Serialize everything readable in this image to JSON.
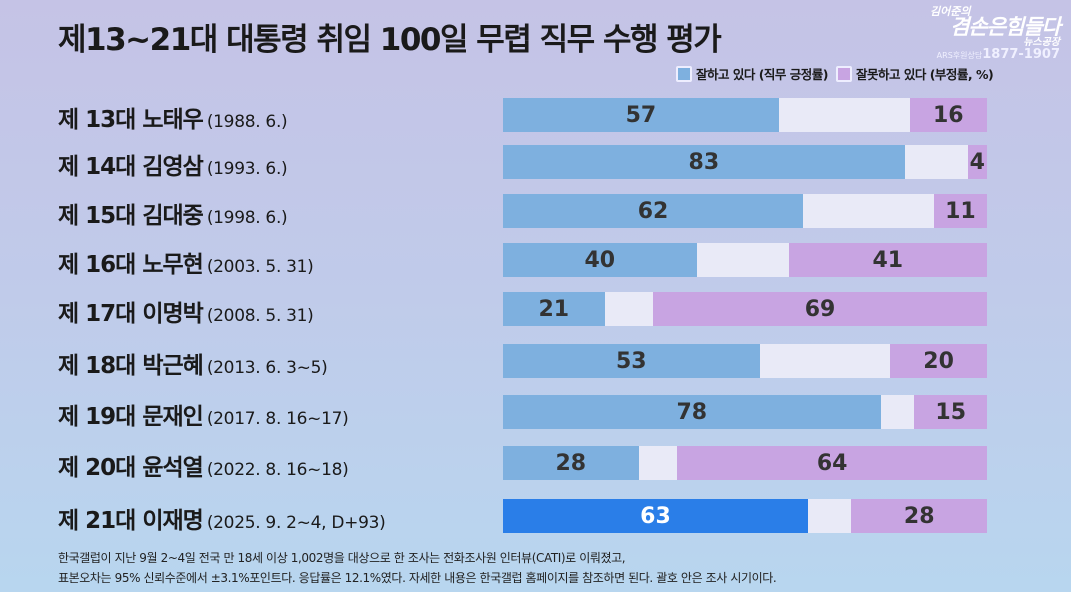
{
  "title": "제13~21대 대통령 취임 100일 무렵 직무 수행 평가",
  "logo": {
    "line1": "김어준의",
    "line2": "겸손은힘들다",
    "line3": "뉴스공장",
    "ars_label": "ARS후원상담",
    "phone": "1877-1907"
  },
  "colors": {
    "positive": "#7eb0df",
    "negative": "#c8a4e2",
    "highlight": "#2a7ee8",
    "gap": "#e9eaf7"
  },
  "chart_data": {
    "type": "bar",
    "orientation": "horizontal-stacked-diverging",
    "legend": [
      "잘하고 있다 (직무 긍정률)",
      "잘못하고 있다 (부정률, %)"
    ],
    "legend_position": "top-right",
    "categories": [
      {
        "name": "제 13대 노태우",
        "period": "(1988. 6.)"
      },
      {
        "name": "제 14대 김영삼",
        "period": "(1993. 6.)"
      },
      {
        "name": "제 15대 김대중",
        "period": "(1998. 6.)"
      },
      {
        "name": "제 16대 노무현",
        "period": "(2003. 5. 31)"
      },
      {
        "name": "제 17대 이명박",
        "period": "(2008. 5. 31)"
      },
      {
        "name": "제 18대 박근혜",
        "period": "(2013. 6. 3~5)"
      },
      {
        "name": "제 19대 문재인",
        "period": "(2017. 8. 16~17)"
      },
      {
        "name": "제 20대 윤석열",
        "period": "(2022. 8. 16~18)"
      },
      {
        "name": "제 21대 이재명",
        "period": "(2025. 9. 2~4, D+93)"
      }
    ],
    "series": [
      {
        "name": "잘하고 있다 (직무 긍정률)",
        "values": [
          57,
          83,
          62,
          40,
          21,
          53,
          78,
          28,
          63
        ]
      },
      {
        "name": "잘못하고 있다 (부정률, %)",
        "values": [
          16,
          4,
          11,
          41,
          69,
          20,
          15,
          64,
          28
        ]
      }
    ],
    "highlighted_index": 8,
    "xlim": [
      0,
      100
    ]
  },
  "note": [
    "한국갤럽이 지난 9월 2~4일 전국 만 18세 이상 1,002명을 대상으로 한 조사는 전화조사원 인터뷰(CATI)로 이뤄졌고,",
    "표본오차는 95% 신뢰수준에서 ±3.1%포인트다. 응답률은 12.1%였다. 자세한 내용은 한국갤럽 홈페이지를 참조하면 된다. 괄호 안은 조사 시기이다."
  ]
}
